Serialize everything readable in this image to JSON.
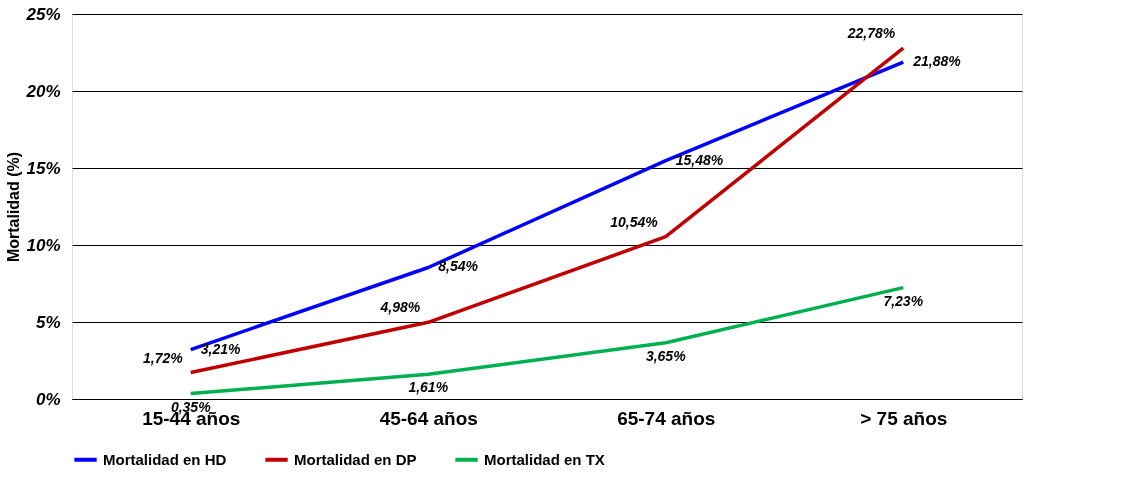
{
  "chart_data": {
    "type": "line",
    "ylabel": "Mortalidad (%)",
    "categories": [
      "15-44 años",
      "45-64 años",
      "65-74 años",
      "> 75 años"
    ],
    "series": [
      {
        "name": "Mortalidad en HD",
        "color": "#0000ff",
        "values": [
          3.21,
          8.54,
          15.48,
          21.88
        ],
        "value_labels": [
          "3,21%",
          "8,54%",
          "15,48%",
          "21,88%"
        ]
      },
      {
        "name": "Mortalidad en DP",
        "color": "#c00000",
        "values": [
          1.72,
          4.98,
          10.54,
          22.78
        ],
        "value_labels": [
          "1,72%",
          "4,98%",
          "10,54%",
          "22,78%"
        ]
      },
      {
        "name": "Mortalidad en TX",
        "color": "#00b050",
        "values": [
          0.35,
          1.61,
          3.65,
          7.23
        ],
        "value_labels": [
          "0,35%",
          "1,61%",
          "3,65%",
          "7,23%"
        ]
      }
    ],
    "ylim": [
      0,
      25
    ],
    "yticks": [
      {
        "value": 0,
        "label": "0%"
      },
      {
        "value": 5,
        "label": "5%"
      },
      {
        "value": 10,
        "label": "10%"
      },
      {
        "value": 15,
        "label": "15%"
      },
      {
        "value": 20,
        "label": "20%"
      },
      {
        "value": 25,
        "label": "25%"
      }
    ],
    "grid": "y",
    "legend": "bottom",
    "marker": "none",
    "line_style": "solid"
  }
}
